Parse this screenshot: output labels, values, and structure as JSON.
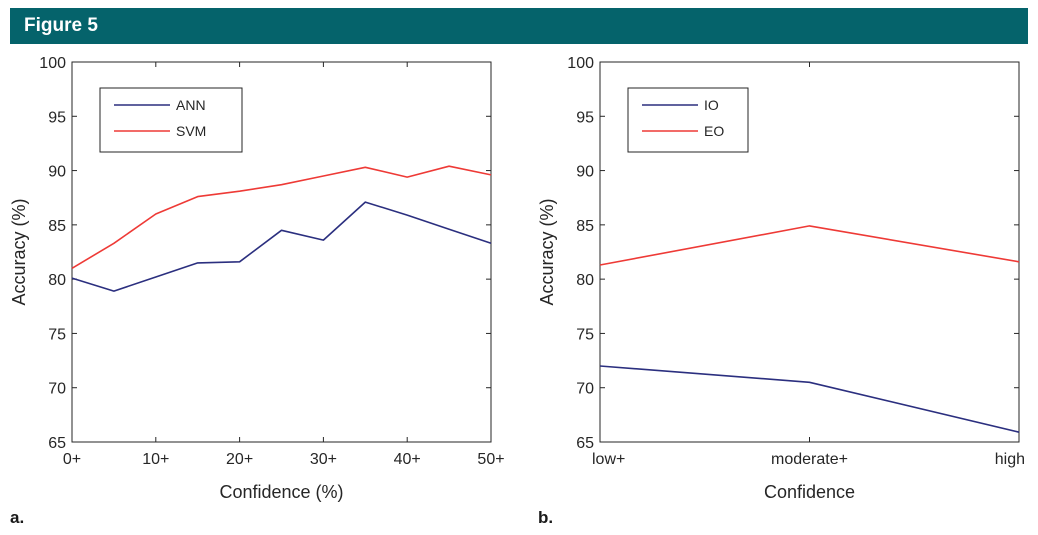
{
  "figure": {
    "title": "Figure 5",
    "header_color": "#05636b"
  },
  "colors": {
    "axes": "#262626",
    "series_blue": "#2b2f7f",
    "series_red": "#ee3a36"
  },
  "chart_data": [
    {
      "panel_label": "a.",
      "type": "line",
      "title": "",
      "xlabel": "Confidence (%)",
      "ylabel": "Accuracy (%)",
      "x": [
        0,
        5,
        10,
        15,
        20,
        25,
        30,
        35,
        40,
        45,
        50
      ],
      "xlim": [
        0,
        50
      ],
      "xticks": [
        0,
        10,
        20,
        30,
        40,
        50
      ],
      "xtick_labels": [
        "0+",
        "10+",
        "20+",
        "30+",
        "40+",
        "50+"
      ],
      "ylim": [
        65,
        100
      ],
      "yticks": [
        65,
        70,
        75,
        80,
        85,
        90,
        95,
        100
      ],
      "grid": false,
      "legend_position": "top-left",
      "series": [
        {
          "name": "ANN",
          "color": "#2b2f7f",
          "values": [
            80.1,
            78.9,
            80.2,
            81.5,
            81.6,
            84.5,
            83.6,
            87.1,
            85.9,
            84.6,
            83.3
          ]
        },
        {
          "name": "SVM",
          "color": "#ee3a36",
          "values": [
            81.0,
            83.3,
            86.0,
            87.6,
            88.1,
            88.7,
            89.5,
            90.3,
            89.4,
            90.4,
            89.6
          ]
        }
      ]
    },
    {
      "panel_label": "b.",
      "type": "line",
      "title": "",
      "xlabel": "Confidence",
      "ylabel": "Accuracy (%)",
      "categories": [
        "low+",
        "moderate+",
        "high"
      ],
      "ylim": [
        65,
        100
      ],
      "yticks": [
        65,
        70,
        75,
        80,
        85,
        90,
        95,
        100
      ],
      "grid": false,
      "legend_position": "top-left",
      "series": [
        {
          "name": "IO",
          "color": "#2b2f7f",
          "values": [
            72.0,
            70.5,
            65.9
          ]
        },
        {
          "name": "EO",
          "color": "#ee3a36",
          "values": [
            81.3,
            84.9,
            81.6
          ]
        }
      ]
    }
  ]
}
